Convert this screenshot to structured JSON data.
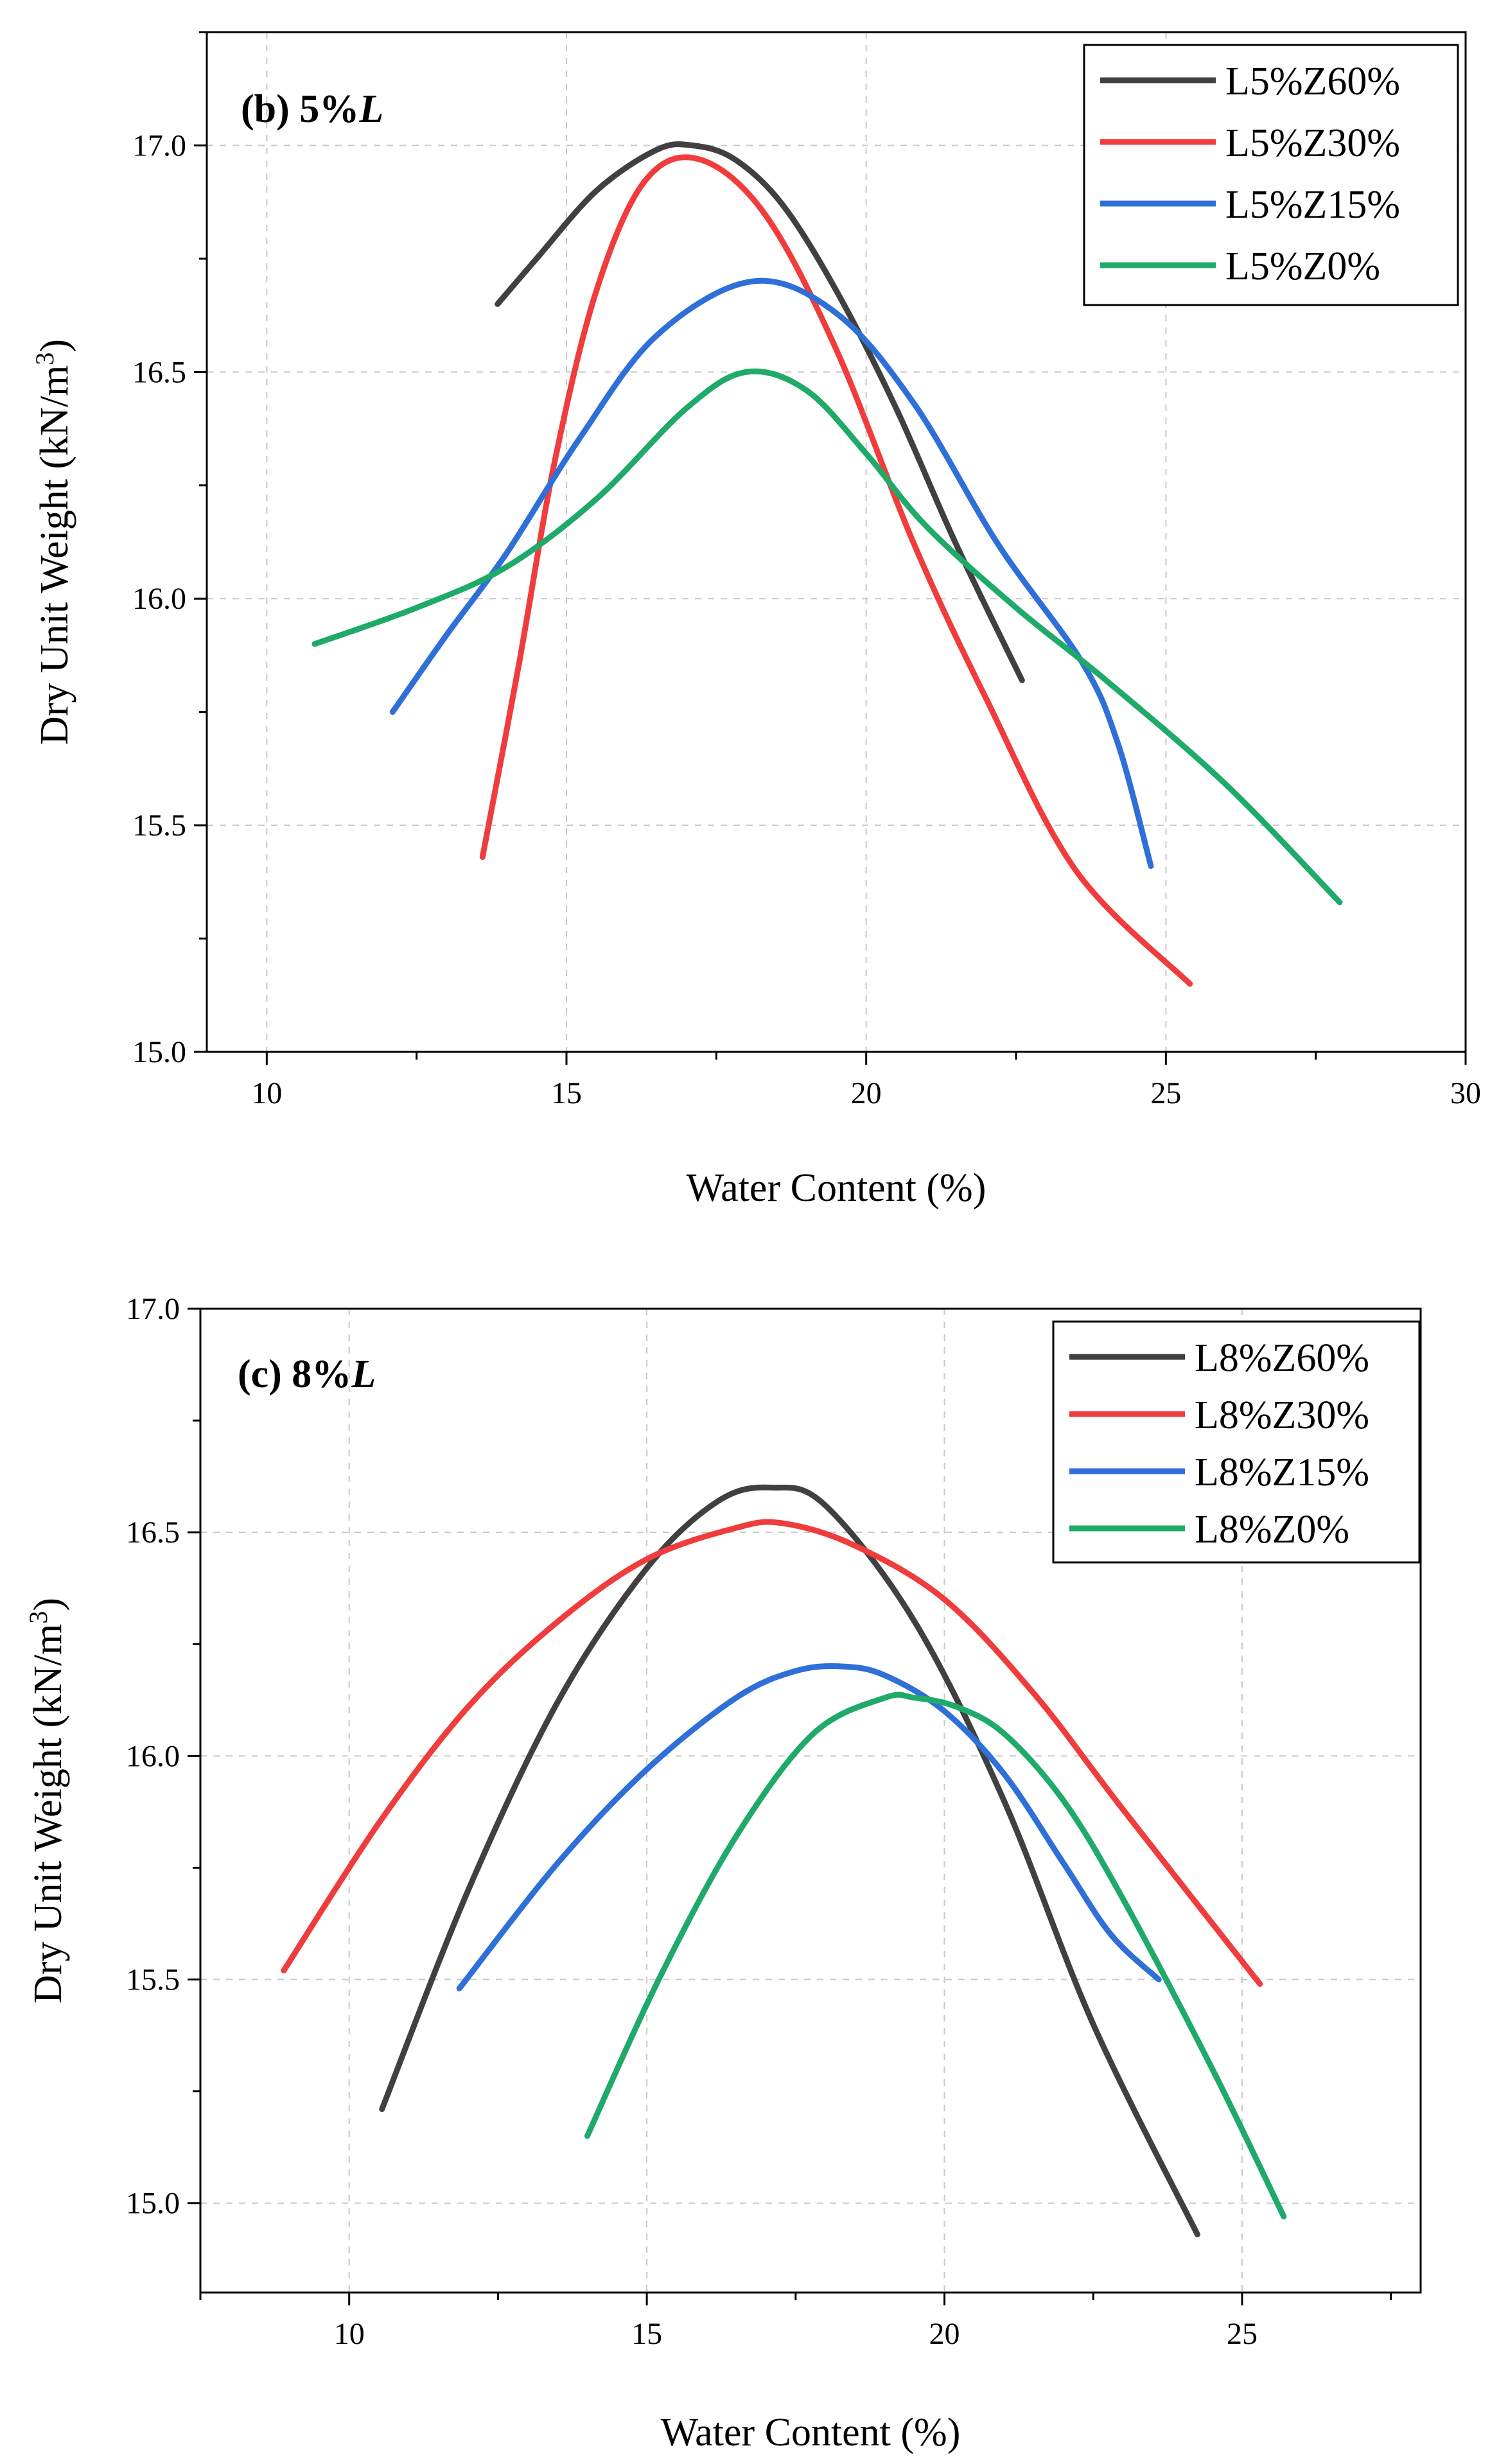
{
  "chart_data": [
    {
      "type": "line",
      "panel_label": "(b) 5%",
      "panel_label_italic": "L",
      "xlabel": "Water Content (%)",
      "ylabel_main": "Dry Unit Weight (kN/m",
      "ylabel_sup": "3",
      "ylabel_end": ")",
      "xlim": [
        9,
        30
      ],
      "ylim": [
        15.0,
        17.25
      ],
      "xticks": [
        "10",
        "15",
        "20",
        "25",
        "30"
      ],
      "xtick_values": [
        10,
        15,
        20,
        25,
        30
      ],
      "yticks": [
        "15.0",
        "15.5",
        "16.0",
        "16.5",
        "17.0"
      ],
      "ytick_values": [
        15.0,
        15.5,
        16.0,
        16.5,
        17.0
      ],
      "legend_position": "top-right",
      "series": [
        {
          "name": "L5%Z60%",
          "color": "#404040",
          "x": [
            13.85,
            14.5,
            15.5,
            16.5,
            17.1,
            17.8,
            18.6,
            19.5,
            20.5,
            21.5,
            22.6
          ],
          "y": [
            16.65,
            16.75,
            16.9,
            16.99,
            17.0,
            16.97,
            16.87,
            16.68,
            16.42,
            16.12,
            15.82
          ]
        },
        {
          "name": "L5%Z30%",
          "color": "#f03c3c",
          "x": [
            13.6,
            14.2,
            14.8,
            15.5,
            16.3,
            17.2,
            18.3,
            19.5,
            20.8,
            22.0,
            23.5,
            25.4
          ],
          "y": [
            15.43,
            15.85,
            16.3,
            16.68,
            16.92,
            16.97,
            16.85,
            16.55,
            16.12,
            15.78,
            15.4,
            15.15
          ]
        },
        {
          "name": "L5%Z15%",
          "color": "#2f6fd8",
          "x": [
            12.1,
            13.0,
            14.0,
            15.2,
            16.5,
            18.1,
            19.5,
            20.8,
            22.2,
            23.6,
            24.2,
            24.75
          ],
          "y": [
            15.75,
            15.92,
            16.1,
            16.35,
            16.58,
            16.7,
            16.63,
            16.43,
            16.12,
            15.86,
            15.68,
            15.41
          ]
        },
        {
          "name": "L5%Z0%",
          "color": "#1faa6a",
          "x": [
            10.8,
            12.5,
            14.0,
            15.5,
            17.0,
            18.0,
            19.0,
            20.0,
            21.0,
            22.5,
            24.0,
            26.0,
            27.9
          ],
          "y": [
            15.9,
            15.98,
            16.07,
            16.22,
            16.42,
            16.5,
            16.46,
            16.32,
            16.16,
            15.98,
            15.82,
            15.59,
            15.33
          ]
        }
      ]
    },
    {
      "type": "line",
      "panel_label": "(c) 8%",
      "panel_label_italic": "L",
      "xlabel": "Water Content (%)",
      "ylabel_main": "Dry Unit Weight (kN/m",
      "ylabel_sup": "3",
      "ylabel_end": ")",
      "xlim": [
        7.5,
        28
      ],
      "ylim": [
        14.8,
        17.0
      ],
      "xticks": [
        "10",
        "15",
        "20",
        "25"
      ],
      "xtick_values": [
        10,
        15,
        20,
        25
      ],
      "yticks": [
        "15.0",
        "15.5",
        "16.0",
        "16.5",
        "17.0"
      ],
      "ytick_values": [
        15.0,
        15.5,
        16.0,
        16.5,
        17.0
      ],
      "legend_position": "top-right",
      "series": [
        {
          "name": "L8%Z60%",
          "color": "#404040",
          "x": [
            10.55,
            12.0,
            13.5,
            15.0,
            16.2,
            17.1,
            18.0,
            19.5,
            21.0,
            22.5,
            24.25
          ],
          "y": [
            15.21,
            15.7,
            16.12,
            16.42,
            16.57,
            16.6,
            16.56,
            16.3,
            15.9,
            15.4,
            14.93
          ]
        },
        {
          "name": "L8%Z30%",
          "color": "#f03c3c",
          "x": [
            8.9,
            10.5,
            12.0,
            13.5,
            15.0,
            16.5,
            17.3,
            18.5,
            20.0,
            21.5,
            23.0,
            25.3
          ],
          "y": [
            15.52,
            15.85,
            16.11,
            16.3,
            16.44,
            16.51,
            16.52,
            16.47,
            16.35,
            16.14,
            15.88,
            15.49
          ]
        },
        {
          "name": "L8%Z15%",
          "color": "#2f6fd8",
          "x": [
            11.85,
            13.5,
            15.0,
            16.5,
            17.5,
            18.3,
            19.0,
            20.0,
            21.0,
            22.0,
            22.8,
            23.6
          ],
          "y": [
            15.48,
            15.76,
            15.97,
            16.13,
            16.19,
            16.2,
            16.18,
            16.1,
            15.96,
            15.76,
            15.6,
            15.5
          ]
        },
        {
          "name": "L8%Z0%",
          "color": "#1faa6a",
          "x": [
            14.0,
            15.2,
            16.5,
            17.8,
            19.0,
            19.5,
            20.2,
            21.0,
            22.0,
            23.0,
            24.5,
            25.7
          ],
          "y": [
            15.15,
            15.5,
            15.82,
            16.05,
            16.13,
            16.13,
            16.11,
            16.05,
            15.9,
            15.68,
            15.3,
            14.97
          ]
        }
      ]
    }
  ]
}
